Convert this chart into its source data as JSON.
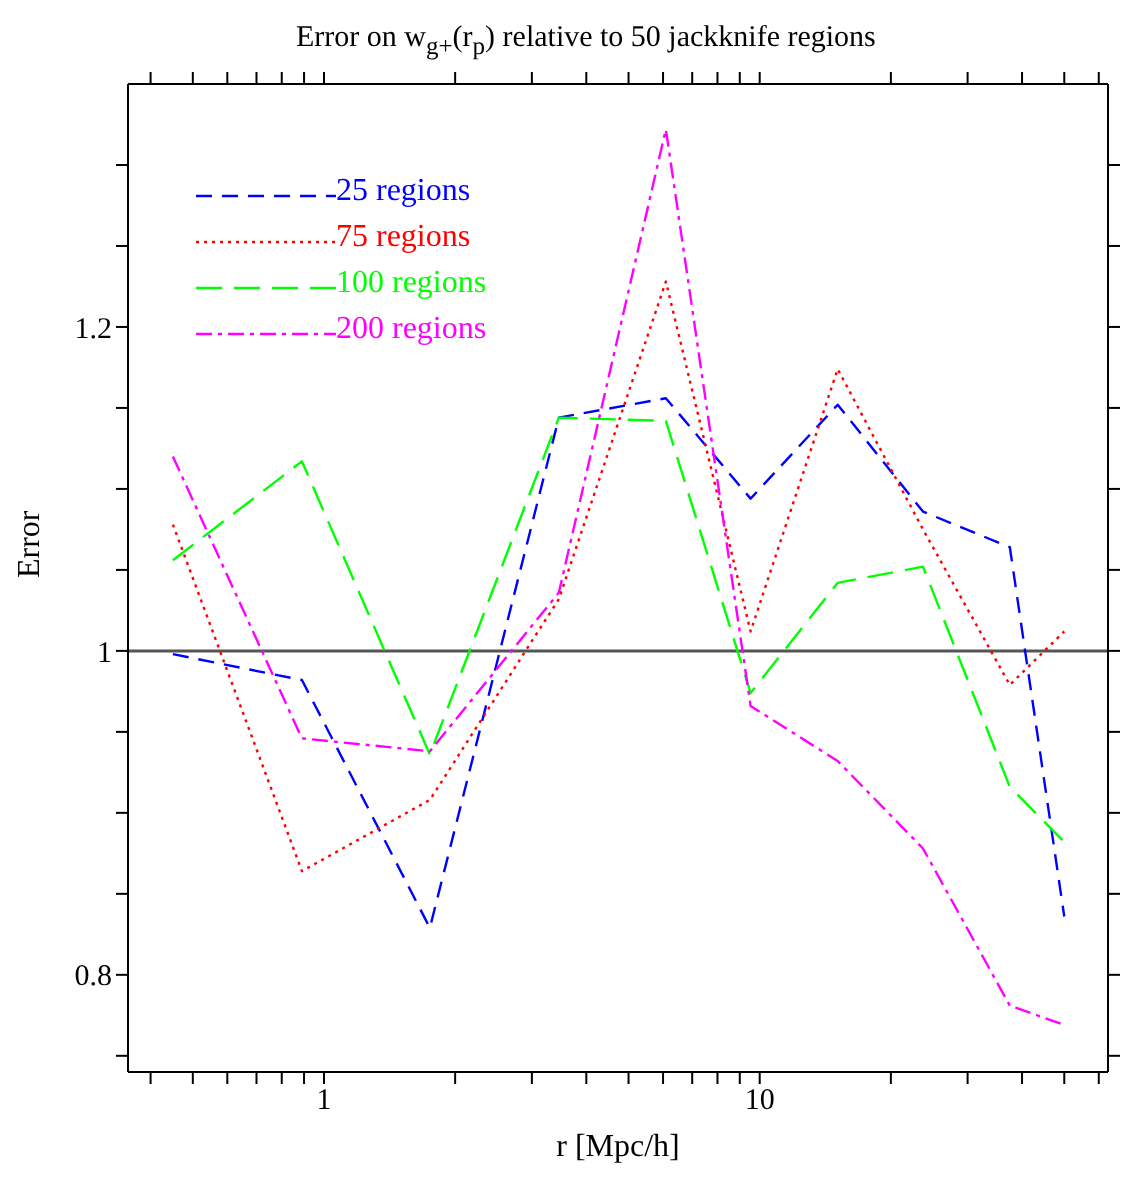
{
  "chart_data": {
    "type": "line",
    "title": "Error on w$_{g+}$(r$_{p}$) relative to 50 jackknife regions",
    "xlabel": "r [Mpc/h]",
    "ylabel": "Error",
    "log": "x",
    "x": [
      0.45,
      0.89,
      1.75,
      3.46,
      6.09,
      9.53,
      15.1,
      23.7,
      37.5,
      50
    ],
    "series": [
      {
        "name": "25 regions",
        "color": "#0000ff",
        "line_style": "dashed",
        "values": [
          0.998,
          0.982,
          0.829,
          1.144,
          1.156,
          1.094,
          1.152,
          1.086,
          1.064,
          0.836
        ]
      },
      {
        "name": "75 regions",
        "color": "#ff0000",
        "line_style": "dotted",
        "values": [
          1.078,
          0.864,
          0.908,
          1.032,
          1.228,
          1.012,
          1.174,
          1.075,
          0.979,
          1.012
        ]
      },
      {
        "name": "100 regions",
        "color": "#00ff00",
        "line_style": "longdash",
        "values": [
          1.056,
          1.117,
          0.936,
          1.144,
          1.142,
          0.974,
          1.042,
          1.052,
          0.916,
          0.882
        ]
      },
      {
        "name": "200 regions",
        "color": "#ff00ff",
        "line_style": "dashdot",
        "values": [
          1.12,
          0.946,
          0.938,
          1.036,
          1.322,
          0.966,
          0.932,
          0.878,
          0.781,
          0.769
        ]
      }
    ],
    "xlim": [
      0.355,
      63
    ],
    "ylim": [
      0.74,
      1.35
    ],
    "xticks": [
      {
        "value": 0.4,
        "label": null
      },
      {
        "value": 0.5,
        "label": null
      },
      {
        "value": 0.6,
        "label": null
      },
      {
        "value": 0.7,
        "label": null
      },
      {
        "value": 0.8,
        "label": null
      },
      {
        "value": 0.9,
        "label": null
      },
      1,
      {
        "value": 2,
        "label": null
      },
      {
        "value": 3,
        "label": null
      },
      {
        "value": 4,
        "label": null
      },
      {
        "value": 5,
        "label": null
      },
      {
        "value": 6,
        "label": null
      },
      {
        "value": 7,
        "label": null
      },
      {
        "value": 8,
        "label": null
      },
      {
        "value": 9,
        "label": null
      },
      10,
      {
        "value": 20,
        "label": null
      },
      {
        "value": 30,
        "label": null
      },
      {
        "value": 40,
        "label": null
      },
      {
        "value": 50,
        "label": null
      },
      {
        "value": 60,
        "label": null
      }
    ],
    "yticks": [
      {
        "value": 0.75,
        "label": null
      },
      0.8,
      {
        "value": 0.85,
        "label": null
      },
      {
        "value": 0.9,
        "label": null
      },
      {
        "value": 0.95,
        "label": null
      },
      1,
      {
        "value": 1.05,
        "label": null
      },
      {
        "value": 1.1,
        "label": null
      },
      {
        "value": 1.15,
        "label": null
      },
      1.2,
      {
        "value": 1.25,
        "label": null
      },
      {
        "value": 1.3,
        "label": null
      }
    ],
    "ref_lines": [
      {
        "axis": "y",
        "value": 1,
        "label": null,
        "color": "#555555"
      }
    ],
    "legend": "top left",
    "marker": "none",
    "grid": false
  }
}
